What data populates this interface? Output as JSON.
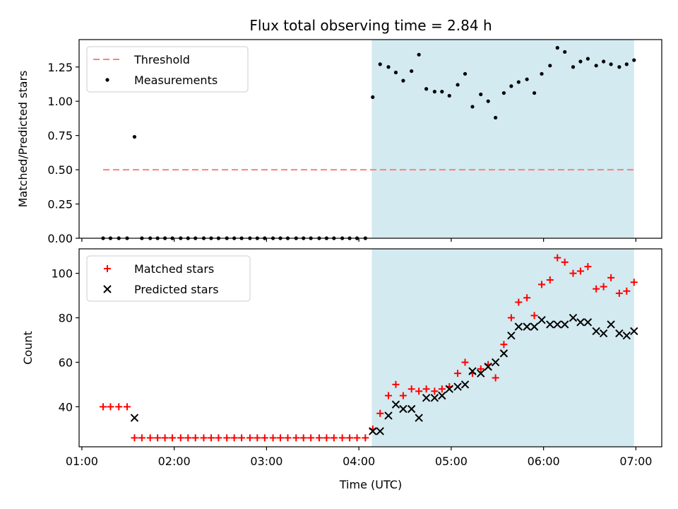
{
  "chart_data": {
    "type": "scatter",
    "title": "Flux total observing time = 2.84 h",
    "xlabel": "Time (UTC)",
    "xlim_hours": [
      0.97,
      7.28
    ],
    "xticks": [
      {
        "value": 1,
        "label": "01:00"
      },
      {
        "value": 2,
        "label": "02:00"
      },
      {
        "value": 3,
        "label": "03:00"
      },
      {
        "value": 4,
        "label": "04:00"
      },
      {
        "value": 5,
        "label": "05:00"
      },
      {
        "value": 6,
        "label": "06:00"
      },
      {
        "value": 7,
        "label": "07:00"
      }
    ],
    "observing_window_hours": [
      4.14,
      6.98
    ],
    "observing_window_color": "#d3eaf0",
    "panels": [
      {
        "ylabel": "Matched/Predicted stars",
        "ylim": [
          0,
          1.45
        ],
        "yticks": [
          {
            "value": 0,
            "label": "0.00"
          },
          {
            "value": 0.25,
            "label": "0.25"
          },
          {
            "value": 0.5,
            "label": "0.50"
          },
          {
            "value": 0.75,
            "label": "0.75"
          },
          {
            "value": 1.0,
            "label": "1.00"
          },
          {
            "value": 1.25,
            "label": "1.25"
          }
        ],
        "legend": [
          "Threshold",
          "Measurements"
        ],
        "threshold": {
          "name": "Threshold",
          "value": 0.5,
          "x_range": [
            1.23,
            6.98
          ],
          "color": "#ff7f7f"
        },
        "series": [
          {
            "name": "Measurements",
            "color": "#000000",
            "x": [
              1.23,
              1.31,
              1.4,
              1.49,
              1.57,
              1.65,
              1.74,
              1.82,
              1.9,
              1.98,
              2.07,
              2.15,
              2.23,
              2.32,
              2.4,
              2.48,
              2.57,
              2.65,
              2.73,
              2.82,
              2.9,
              2.98,
              3.07,
              3.15,
              3.23,
              3.32,
              3.4,
              3.48,
              3.57,
              3.65,
              3.73,
              3.82,
              3.9,
              3.98,
              4.07,
              4.15,
              4.23,
              4.32,
              4.4,
              4.48,
              4.57,
              4.65,
              4.73,
              4.82,
              4.9,
              4.98,
              5.07,
              5.15,
              5.23,
              5.32,
              5.4,
              5.48,
              5.57,
              5.65,
              5.73,
              5.82,
              5.9,
              5.98,
              6.07,
              6.15,
              6.23,
              6.32,
              6.4,
              6.48,
              6.57,
              6.65,
              6.73,
              6.82,
              6.9,
              6.98
            ],
            "y": [
              0,
              0,
              0,
              0,
              0.74,
              0,
              0,
              0,
              0,
              0,
              0,
              0,
              0,
              0,
              0,
              0,
              0,
              0,
              0,
              0,
              0,
              0,
              0,
              0,
              0,
              0,
              0,
              0,
              0,
              0,
              0,
              0,
              0,
              0,
              0,
              1.03,
              1.27,
              1.25,
              1.21,
              1.15,
              1.22,
              1.34,
              1.09,
              1.07,
              1.07,
              1.04,
              1.12,
              1.2,
              0.96,
              1.05,
              1.0,
              0.88,
              1.06,
              1.11,
              1.14,
              1.16,
              1.06,
              1.2,
              1.26,
              1.39,
              1.36,
              1.25,
              1.29,
              1.31,
              1.26,
              1.29,
              1.27,
              1.25,
              1.27,
              1.3
            ]
          }
        ]
      },
      {
        "ylabel": "Count",
        "ylim": [
          22,
          111
        ],
        "yticks": [
          {
            "value": 40,
            "label": "40"
          },
          {
            "value": 60,
            "label": "60"
          },
          {
            "value": 80,
            "label": "80"
          },
          {
            "value": 100,
            "label": "100"
          }
        ],
        "legend": [
          "Matched stars",
          "Predicted stars"
        ],
        "series": [
          {
            "name": "Matched stars",
            "marker": "plus",
            "color": "#ff0000",
            "x": [
              1.23,
              1.31,
              1.4,
              1.49,
              1.57,
              1.65,
              1.74,
              1.82,
              1.9,
              1.98,
              2.07,
              2.15,
              2.23,
              2.32,
              2.4,
              2.48,
              2.57,
              2.65,
              2.73,
              2.82,
              2.9,
              2.98,
              3.07,
              3.15,
              3.23,
              3.32,
              3.4,
              3.48,
              3.57,
              3.65,
              3.73,
              3.82,
              3.9,
              3.98,
              4.07,
              4.15,
              4.23,
              4.32,
              4.4,
              4.48,
              4.57,
              4.65,
              4.73,
              4.82,
              4.9,
              4.98,
              5.07,
              5.15,
              5.23,
              5.32,
              5.4,
              5.48,
              5.57,
              5.65,
              5.73,
              5.82,
              5.9,
              5.98,
              6.07,
              6.15,
              6.23,
              6.32,
              6.4,
              6.48,
              6.57,
              6.65,
              6.73,
              6.82,
              6.9,
              6.98
            ],
            "y": [
              40,
              40,
              40,
              40,
              26,
              26,
              26,
              26,
              26,
              26,
              26,
              26,
              26,
              26,
              26,
              26,
              26,
              26,
              26,
              26,
              26,
              26,
              26,
              26,
              26,
              26,
              26,
              26,
              26,
              26,
              26,
              26,
              26,
              26,
              26,
              30,
              37,
              45,
              50,
              45,
              48,
              47,
              48,
              47,
              48,
              49,
              55,
              60,
              55,
              57,
              59,
              53,
              68,
              80,
              87,
              89,
              81,
              95,
              97,
              107,
              105,
              100,
              101,
              103,
              93,
              94,
              98,
              91,
              92,
              96
            ]
          },
          {
            "name": "Predicted stars",
            "marker": "x",
            "color": "#000000",
            "x": [
              1.57,
              4.15,
              4.23,
              4.32,
              4.4,
              4.48,
              4.57,
              4.65,
              4.73,
              4.82,
              4.9,
              4.98,
              5.07,
              5.15,
              5.23,
              5.32,
              5.4,
              5.48,
              5.57,
              5.65,
              5.73,
              5.82,
              5.9,
              5.98,
              6.07,
              6.15,
              6.23,
              6.32,
              6.4,
              6.48,
              6.57,
              6.65,
              6.73,
              6.82,
              6.9,
              6.98
            ],
            "y": [
              35,
              29,
              29,
              36,
              41,
              39,
              39,
              35,
              44,
              44,
              45,
              48,
              49,
              50,
              56,
              55,
              58,
              60,
              64,
              72,
              76,
              76,
              76,
              79,
              77,
              77,
              77,
              80,
              78,
              78,
              74,
              73,
              77,
              73,
              72,
              74
            ]
          }
        ]
      }
    ]
  }
}
